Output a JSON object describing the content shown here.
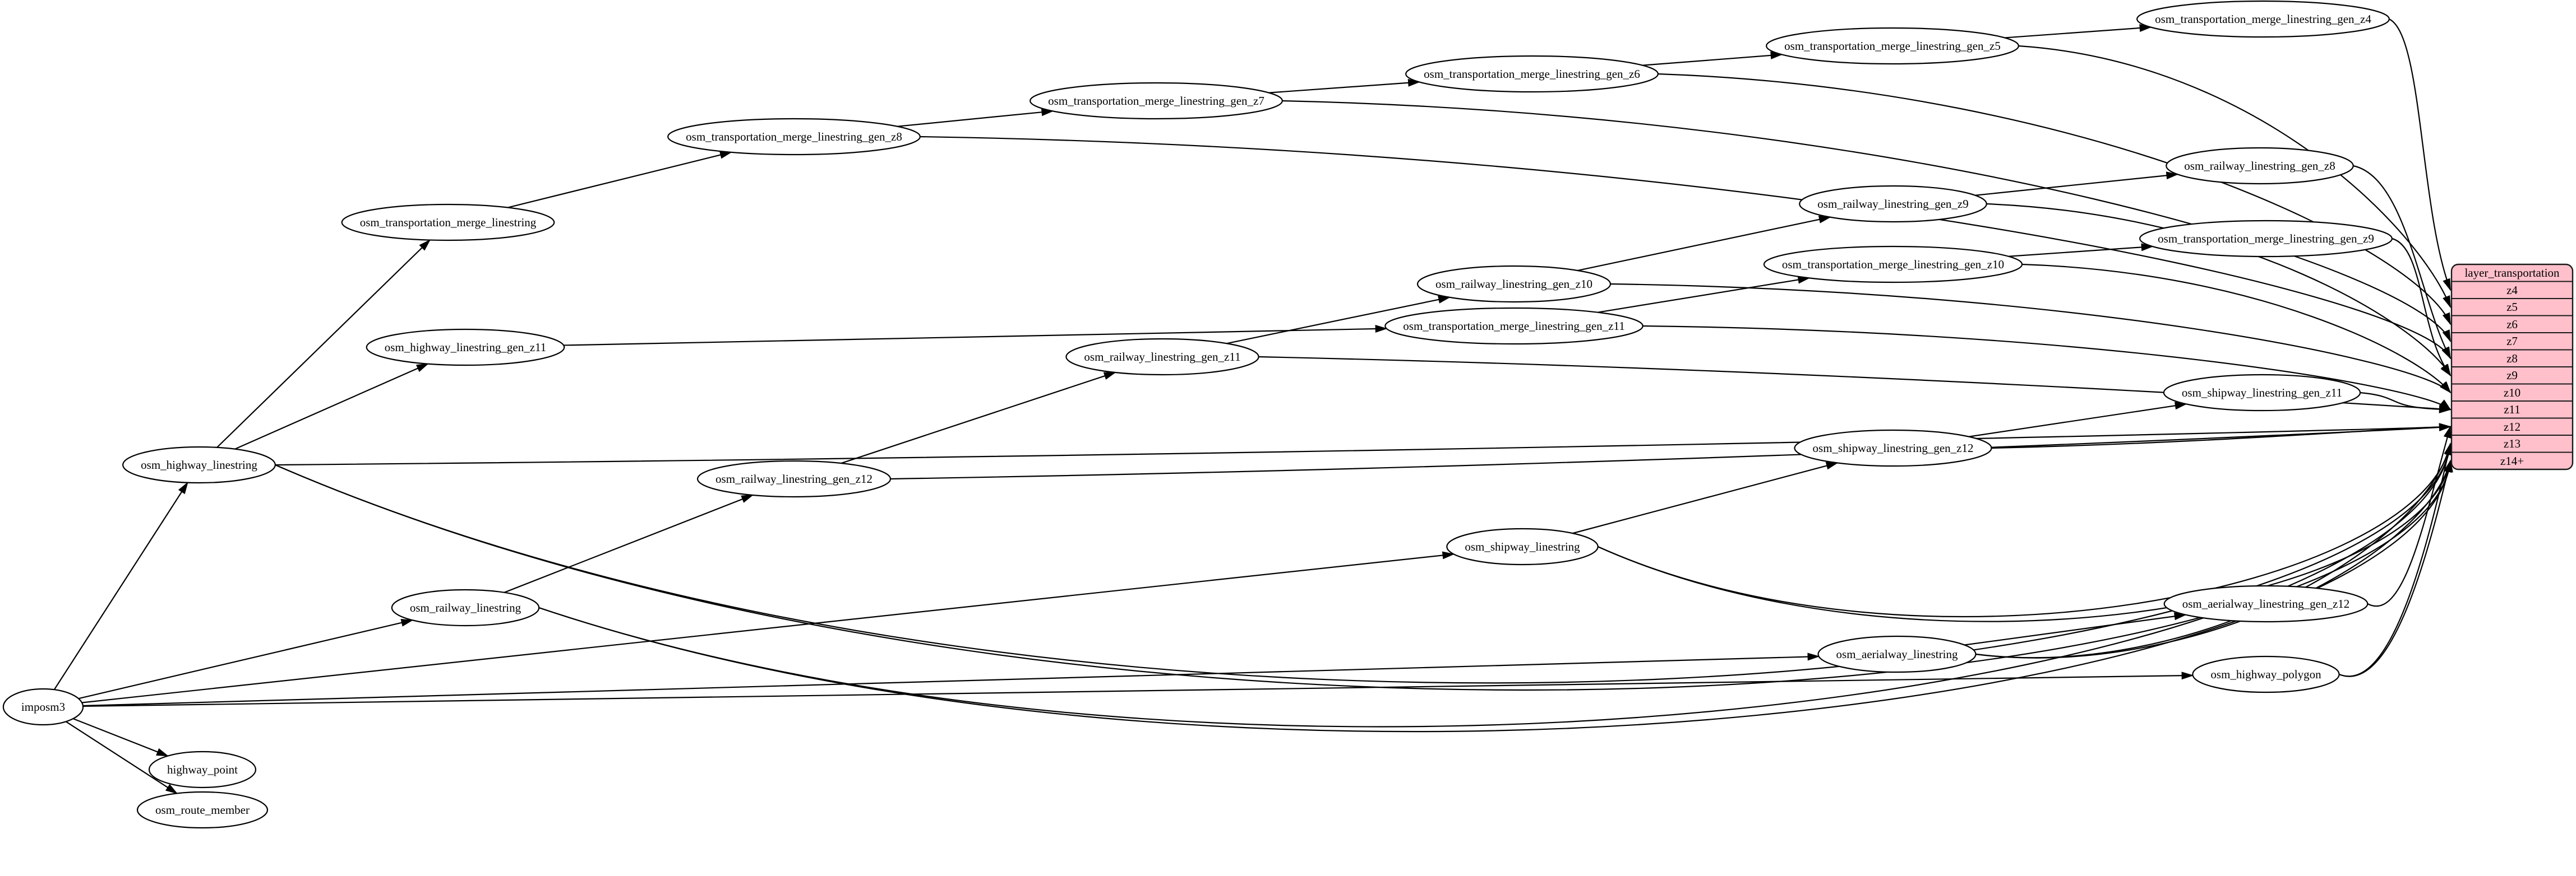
{
  "diagram": {
    "background": "#ffffff",
    "edge_color": "#000000",
    "node_fill": "#ffffff",
    "node_stroke": "#000000",
    "nodes": [
      {
        "id": "imposm3",
        "label": "imposm3"
      },
      {
        "id": "highway_point",
        "label": "highway_point"
      },
      {
        "id": "osm_route_member",
        "label": "osm_route_member"
      },
      {
        "id": "osm_highway_linestring",
        "label": "osm_highway_linestring"
      },
      {
        "id": "osm_railway_linestring",
        "label": "osm_railway_linestring"
      },
      {
        "id": "osm_shipway_linestring",
        "label": "osm_shipway_linestring"
      },
      {
        "id": "osm_aerialway_linestring",
        "label": "osm_aerialway_linestring"
      },
      {
        "id": "osm_highway_polygon",
        "label": "osm_highway_polygon"
      },
      {
        "id": "osm_aerialway_linestring_gen_z12",
        "label": "osm_aerialway_linestring_gen_z12"
      },
      {
        "id": "osm_highway_linestring_gen_z11",
        "label": "osm_highway_linestring_gen_z11"
      },
      {
        "id": "osm_transportation_merge_linestring",
        "label": "osm_transportation_merge_linestring"
      },
      {
        "id": "osm_transportation_merge_linestring_gen_z8",
        "label": "osm_transportation_merge_linestring_gen_z8"
      },
      {
        "id": "osm_transportation_merge_linestring_gen_z7",
        "label": "osm_transportation_merge_linestring_gen_z7"
      },
      {
        "id": "osm_transportation_merge_linestring_gen_z6",
        "label": "osm_transportation_merge_linestring_gen_z6"
      },
      {
        "id": "osm_transportation_merge_linestring_gen_z5",
        "label": "osm_transportation_merge_linestring_gen_z5"
      },
      {
        "id": "osm_transportation_merge_linestring_gen_z4",
        "label": "osm_transportation_merge_linestring_gen_z4"
      },
      {
        "id": "osm_railway_linestring_gen_z12",
        "label": "osm_railway_linestring_gen_z12"
      },
      {
        "id": "osm_railway_linestring_gen_z11",
        "label": "osm_railway_linestring_gen_z11"
      },
      {
        "id": "osm_railway_linestring_gen_z10",
        "label": "osm_railway_linestring_gen_z10"
      },
      {
        "id": "osm_railway_linestring_gen_z9",
        "label": "osm_railway_linestring_gen_z9"
      },
      {
        "id": "osm_railway_linestring_gen_z8",
        "label": "osm_railway_linestring_gen_z8"
      },
      {
        "id": "osm_transportation_merge_linestring_gen_z11",
        "label": "osm_transportation_merge_linestring_gen_z11"
      },
      {
        "id": "osm_transportation_merge_linestring_gen_z10",
        "label": "osm_transportation_merge_linestring_gen_z10"
      },
      {
        "id": "osm_transportation_merge_linestring_gen_z9",
        "label": "osm_transportation_merge_linestring_gen_z9"
      },
      {
        "id": "osm_shipway_linestring_gen_z11",
        "label": "osm_shipway_linestring_gen_z11"
      },
      {
        "id": "osm_shipway_linestring_gen_z12",
        "label": "osm_shipway_linestring_gen_z12"
      }
    ],
    "edges": [
      {
        "from": "imposm3",
        "to": "osm_highway_linestring"
      },
      {
        "from": "imposm3",
        "to": "osm_railway_linestring"
      },
      {
        "from": "imposm3",
        "to": "osm_shipway_linestring"
      },
      {
        "from": "imposm3",
        "to": "osm_aerialway_linestring"
      },
      {
        "from": "imposm3",
        "to": "osm_highway_polygon"
      },
      {
        "from": "imposm3",
        "to": "highway_point"
      },
      {
        "from": "imposm3",
        "to": "osm_route_member"
      },
      {
        "from": "osm_highway_linestring",
        "to": "osm_transportation_merge_linestring"
      },
      {
        "from": "osm_highway_linestring",
        "to": "osm_highway_linestring_gen_z11"
      },
      {
        "from": "osm_highway_linestring",
        "to": "row:z12"
      },
      {
        "from": "osm_highway_linestring",
        "to": "row:z13"
      },
      {
        "from": "osm_highway_linestring",
        "to": "row:z14+"
      },
      {
        "from": "osm_transportation_merge_linestring",
        "to": "osm_transportation_merge_linestring_gen_z8"
      },
      {
        "from": "osm_transportation_merge_linestring_gen_z8",
        "to": "osm_transportation_merge_linestring_gen_z7"
      },
      {
        "from": "osm_transportation_merge_linestring_gen_z8",
        "to": "row:z8"
      },
      {
        "from": "osm_transportation_merge_linestring_gen_z7",
        "to": "osm_transportation_merge_linestring_gen_z6"
      },
      {
        "from": "osm_transportation_merge_linestring_gen_z7",
        "to": "row:z7"
      },
      {
        "from": "osm_transportation_merge_linestring_gen_z6",
        "to": "osm_transportation_merge_linestring_gen_z5"
      },
      {
        "from": "osm_transportation_merge_linestring_gen_z6",
        "to": "row:z6"
      },
      {
        "from": "osm_transportation_merge_linestring_gen_z5",
        "to": "osm_transportation_merge_linestring_gen_z4"
      },
      {
        "from": "osm_transportation_merge_linestring_gen_z5",
        "to": "row:z5"
      },
      {
        "from": "osm_transportation_merge_linestring_gen_z4",
        "to": "row:z4"
      },
      {
        "from": "osm_highway_linestring_gen_z11",
        "to": "osm_transportation_merge_linestring_gen_z11"
      },
      {
        "from": "osm_transportation_merge_linestring_gen_z11",
        "to": "osm_transportation_merge_linestring_gen_z10"
      },
      {
        "from": "osm_transportation_merge_linestring_gen_z11",
        "to": "row:z11"
      },
      {
        "from": "osm_transportation_merge_linestring_gen_z10",
        "to": "osm_transportation_merge_linestring_gen_z9"
      },
      {
        "from": "osm_transportation_merge_linestring_gen_z10",
        "to": "row:z10"
      },
      {
        "from": "osm_transportation_merge_linestring_gen_z9",
        "to": "row:z9"
      },
      {
        "from": "osm_railway_linestring",
        "to": "osm_railway_linestring_gen_z12"
      },
      {
        "from": "osm_railway_linestring",
        "to": "row:z13"
      },
      {
        "from": "osm_railway_linestring",
        "to": "row:z14+"
      },
      {
        "from": "osm_railway_linestring_gen_z12",
        "to": "osm_railway_linestring_gen_z11"
      },
      {
        "from": "osm_railway_linestring_gen_z12",
        "to": "row:z12"
      },
      {
        "from": "osm_railway_linestring_gen_z11",
        "to": "osm_railway_linestring_gen_z10"
      },
      {
        "from": "osm_railway_linestring_gen_z11",
        "to": "row:z11"
      },
      {
        "from": "osm_railway_linestring_gen_z10",
        "to": "osm_railway_linestring_gen_z9"
      },
      {
        "from": "osm_railway_linestring_gen_z10",
        "to": "row:z10"
      },
      {
        "from": "osm_railway_linestring_gen_z9",
        "to": "osm_railway_linestring_gen_z8"
      },
      {
        "from": "osm_railway_linestring_gen_z9",
        "to": "row:z9"
      },
      {
        "from": "osm_railway_linestring_gen_z8",
        "to": "row:z8"
      },
      {
        "from": "osm_shipway_linestring",
        "to": "osm_shipway_linestring_gen_z12"
      },
      {
        "from": "osm_shipway_linestring",
        "to": "row:z13"
      },
      {
        "from": "osm_shipway_linestring",
        "to": "row:z14+"
      },
      {
        "from": "osm_shipway_linestring_gen_z12",
        "to": "osm_shipway_linestring_gen_z11"
      },
      {
        "from": "osm_shipway_linestring_gen_z12",
        "to": "row:z12"
      },
      {
        "from": "osm_shipway_linestring_gen_z11",
        "to": "row:z11"
      },
      {
        "from": "osm_aerialway_linestring",
        "to": "osm_aerialway_linestring_gen_z12"
      },
      {
        "from": "osm_aerialway_linestring",
        "to": "row:z13"
      },
      {
        "from": "osm_aerialway_linestring",
        "to": "row:z14+"
      },
      {
        "from": "osm_aerialway_linestring_gen_z12",
        "to": "row:z12"
      },
      {
        "from": "osm_highway_polygon",
        "to": "row:z13"
      },
      {
        "from": "osm_highway_polygon",
        "to": "row:z14+"
      }
    ],
    "table": {
      "header": "layer_transportation",
      "rows": [
        "z4",
        "z5",
        "z6",
        "z7",
        "z8",
        "z9",
        "z10",
        "z11",
        "z12",
        "z13",
        "z14+"
      ],
      "fill": "#ffc0cb",
      "header_text_color": "#990000",
      "row_text_color": "#000000"
    }
  }
}
